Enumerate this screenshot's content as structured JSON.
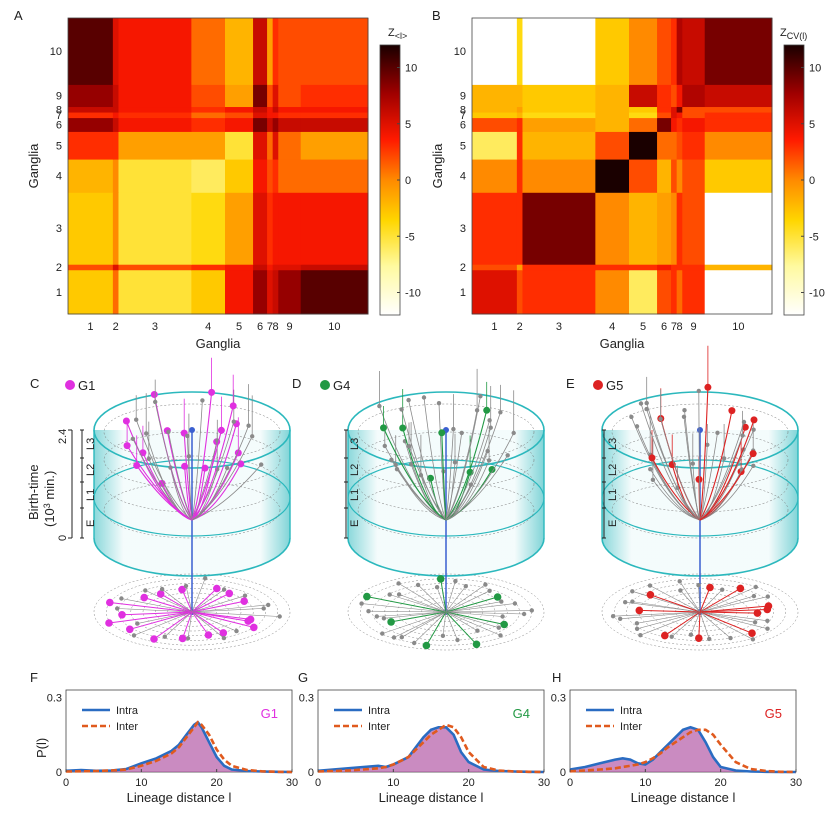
{
  "panels": {
    "A": "A",
    "B": "B",
    "C": "C",
    "D": "D",
    "E": "E",
    "F": "F",
    "G": "G",
    "H": "H"
  },
  "heatmap_axis_label": "Ganglia",
  "heatmap_ticks": [
    "1",
    "2",
    "3",
    "4",
    "5",
    "6",
    "7",
    "8",
    "9",
    "10"
  ],
  "colorbar_ticks": [
    "10",
    "5",
    "0",
    "-5",
    "-10"
  ],
  "colorbar_A_title_main": "Z",
  "colorbar_A_title_sub": "<l>",
  "colorbar_B_title_main": "Z",
  "colorbar_B_title_sub": "CV(l)",
  "tree_legends": [
    {
      "label": "G1",
      "color": "#e030e0"
    },
    {
      "label": "G4",
      "color": "#229944"
    },
    {
      "label": "G5",
      "color": "#dd2222"
    }
  ],
  "birth_axis": {
    "title_line1": "Birth-time",
    "title_line2_pre": "(10",
    "title_line2_sup": "3",
    "title_line2_post": " min.)",
    "top": "2.4",
    "bottom": "0",
    "layers": [
      "L3",
      "L2",
      "L1",
      "E"
    ]
  },
  "dist_legend": {
    "intra": "Intra",
    "inter": "Inter"
  },
  "dist_y_label": "P(l)",
  "dist_x_label": "Lineage distance l",
  "colors": {
    "intra": "#2a6cc2",
    "inter": "#e05a1e",
    "fill": "#b35aa6",
    "cyl": "#2bb8bd"
  },
  "chart_data": [
    {
      "type": "heatmap",
      "title": "A",
      "colorbar_label": "Z_<l>",
      "xlabel": "Ganglia",
      "ylabel": "Ganglia",
      "categories": [
        "1",
        "2",
        "3",
        "4",
        "5",
        "6",
        "7",
        "8",
        "9",
        "10"
      ],
      "block_sizes": [
        1.6,
        0.2,
        2.6,
        1.2,
        1.0,
        0.5,
        0.2,
        0.2,
        0.8,
        2.4
      ],
      "clim": [
        -12,
        12
      ],
      "matrix": [
        [
          -3,
          1,
          -5,
          -3,
          4,
          8,
          5,
          6,
          8,
          10
        ],
        [
          2,
          5,
          2,
          3,
          4,
          6,
          4,
          5,
          5,
          6
        ],
        [
          -3,
          0,
          -5,
          -4,
          -1,
          5,
          3,
          4,
          4,
          4
        ],
        [
          -2,
          0,
          -5,
          -6,
          -3,
          4,
          2,
          3,
          1,
          1
        ],
        [
          3,
          3,
          -1,
          -1,
          -5,
          5,
          1,
          5,
          1,
          -1
        ],
        [
          8,
          6,
          4,
          3,
          4,
          9,
          6,
          8,
          6,
          6
        ],
        [
          3,
          4,
          3,
          1,
          2,
          5,
          4,
          4,
          3,
          3
        ],
        [
          6,
          6,
          4,
          3,
          4,
          6,
          4,
          6,
          4,
          4
        ],
        [
          8,
          6,
          4,
          2,
          -1,
          9,
          2,
          5,
          2,
          3
        ],
        [
          10,
          5,
          4,
          1,
          -2,
          6,
          -1,
          3,
          2,
          2
        ]
      ]
    },
    {
      "type": "heatmap",
      "title": "B",
      "colorbar_label": "Z_CV(l)",
      "xlabel": "Ganglia",
      "ylabel": "Ganglia",
      "categories": [
        "1",
        "2",
        "3",
        "4",
        "5",
        "6",
        "7",
        "8",
        "9",
        "10"
      ],
      "block_sizes": [
        1.6,
        0.2,
        2.6,
        1.2,
        1.0,
        0.5,
        0.2,
        0.2,
        0.8,
        2.4
      ],
      "clim": [
        -12,
        12
      ],
      "matrix": [
        [
          5,
          2,
          3,
          0,
          -6,
          2,
          3,
          1,
          3,
          -12
        ],
        [
          2,
          -1,
          3,
          3,
          3,
          4,
          3,
          3,
          3,
          -2
        ],
        [
          3,
          3,
          9,
          0,
          -2,
          -1,
          0,
          3,
          2,
          -12
        ],
        [
          0,
          3,
          0,
          12,
          2,
          -2,
          2,
          0,
          2,
          -3
        ],
        [
          -6,
          3,
          -2,
          2,
          13,
          1,
          1,
          2,
          3,
          0
        ],
        [
          2,
          3,
          -1,
          -2,
          1,
          9,
          4,
          3,
          4,
          3
        ],
        [
          -3,
          -2,
          -4,
          -2,
          -4,
          2,
          5,
          4,
          2,
          3
        ],
        [
          -2,
          -1,
          -3,
          -2,
          -3,
          3,
          5,
          9,
          2,
          2
        ],
        [
          -2,
          -2,
          -3,
          -2,
          6,
          3,
          2,
          4,
          7,
          6
        ],
        [
          -12,
          -4,
          -12,
          -3,
          0,
          2,
          3,
          7,
          6,
          9
        ]
      ]
    },
    {
      "type": "area",
      "title": "F",
      "label": "G1",
      "label_color": "#e030e0",
      "xlabel": "Lineage distance l",
      "ylabel": "P(l)",
      "xlim": [
        0,
        30
      ],
      "ylim": [
        0,
        0.33
      ],
      "xticks": [
        "0",
        "10",
        "20",
        "30"
      ],
      "yticks": [
        "0",
        "0.3"
      ],
      "series": [
        {
          "name": "Intra",
          "x": [
            0,
            2,
            4,
            6,
            8,
            10,
            12,
            14,
            15,
            16,
            17,
            17.5,
            18,
            19,
            20,
            21,
            22,
            24,
            26,
            28,
            30
          ],
          "y": [
            0.005,
            0.008,
            0.005,
            0.006,
            0.012,
            0.035,
            0.055,
            0.085,
            0.11,
            0.15,
            0.19,
            0.2,
            0.18,
            0.12,
            0.06,
            0.025,
            0.01,
            0.004,
            0.002,
            0.001,
            0
          ]
        },
        {
          "name": "Inter",
          "x": [
            0,
            2,
            4,
            6,
            8,
            10,
            12,
            14,
            15,
            16,
            17,
            17.5,
            18,
            19,
            20,
            21,
            22,
            24,
            26,
            28,
            30
          ],
          "y": [
            0.002,
            0.003,
            0.004,
            0.006,
            0.01,
            0.025,
            0.045,
            0.075,
            0.1,
            0.14,
            0.18,
            0.2,
            0.19,
            0.15,
            0.09,
            0.05,
            0.025,
            0.008,
            0.003,
            0.001,
            0
          ]
        }
      ]
    },
    {
      "type": "area",
      "title": "G",
      "label": "G4",
      "label_color": "#229944",
      "xlabel": "Lineage distance l",
      "ylabel": "P(l)",
      "xlim": [
        0,
        30
      ],
      "ylim": [
        0,
        0.33
      ],
      "xticks": [
        "0",
        "10",
        "20",
        "30"
      ],
      "yticks": [
        "0",
        "0.3"
      ],
      "series": [
        {
          "name": "Intra",
          "x": [
            0,
            2,
            4,
            6,
            8,
            9,
            10,
            11,
            12,
            13,
            14,
            15,
            16,
            17,
            18,
            19,
            20,
            22,
            24,
            26,
            28,
            30
          ],
          "y": [
            0.005,
            0.01,
            0.015,
            0.02,
            0.025,
            0.02,
            0.03,
            0.045,
            0.06,
            0.1,
            0.14,
            0.17,
            0.18,
            0.18,
            0.15,
            0.08,
            0.04,
            0.01,
            0.004,
            0.002,
            0.001,
            0
          ]
        },
        {
          "name": "Inter",
          "x": [
            0,
            2,
            4,
            6,
            8,
            9,
            10,
            11,
            12,
            13,
            14,
            15,
            16,
            17,
            18,
            19,
            20,
            22,
            24,
            26,
            28,
            30
          ],
          "y": [
            0.002,
            0.004,
            0.006,
            0.01,
            0.015,
            0.02,
            0.03,
            0.045,
            0.06,
            0.09,
            0.12,
            0.15,
            0.17,
            0.19,
            0.18,
            0.14,
            0.08,
            0.02,
            0.006,
            0.002,
            0.001,
            0
          ]
        }
      ]
    },
    {
      "type": "area",
      "title": "H",
      "label": "G5",
      "label_color": "#dd2222",
      "xlabel": "Lineage distance l",
      "ylabel": "P(l)",
      "xlim": [
        0,
        30
      ],
      "ylim": [
        0,
        0.33
      ],
      "xticks": [
        "0",
        "10",
        "20",
        "30"
      ],
      "yticks": [
        "0",
        "0.3"
      ],
      "series": [
        {
          "name": "Intra",
          "x": [
            0,
            2,
            4,
            6,
            7,
            8,
            9,
            10,
            11,
            12,
            13,
            14,
            15,
            16,
            17,
            18,
            19,
            20,
            22,
            24,
            26,
            28,
            30
          ],
          "y": [
            0.01,
            0.02,
            0.035,
            0.05,
            0.055,
            0.05,
            0.035,
            0.03,
            0.05,
            0.08,
            0.11,
            0.14,
            0.17,
            0.18,
            0.17,
            0.12,
            0.06,
            0.02,
            0.006,
            0.002,
            0.001,
            0,
            0
          ]
        },
        {
          "name": "Inter",
          "x": [
            0,
            2,
            4,
            6,
            7,
            8,
            9,
            10,
            11,
            12,
            13,
            14,
            15,
            16,
            17,
            18,
            19,
            20,
            22,
            24,
            26,
            28,
            30
          ],
          "y": [
            0.003,
            0.006,
            0.01,
            0.015,
            0.02,
            0.025,
            0.03,
            0.04,
            0.055,
            0.075,
            0.1,
            0.12,
            0.14,
            0.16,
            0.17,
            0.17,
            0.15,
            0.11,
            0.04,
            0.012,
            0.004,
            0.001,
            0
          ]
        }
      ]
    }
  ]
}
